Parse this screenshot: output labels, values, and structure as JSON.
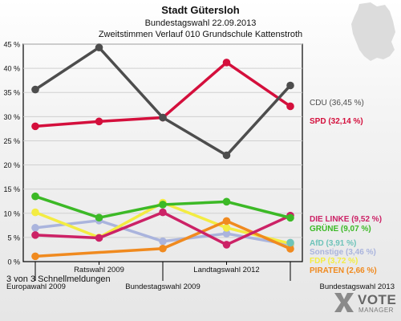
{
  "footer_text": "3 von 3 Schnellmeldungen",
  "brand": {
    "word1": "VOTE",
    "word2": "MANAGER"
  },
  "chart_data": {
    "type": "line",
    "title": "Stadt Gütersloh",
    "subtitle": "Bundestagswahl 22.09.2013",
    "subtitle2": "Zweitstimmen Verlauf 010 Grundschule Kattenstroth",
    "categories": [
      "Europawahl 2009",
      "Ratswahl 2009",
      "Bundestagswahl 2009",
      "Landtagswahl 2012",
      "Bundestagswahl 2013"
    ],
    "ylim": [
      0,
      45
    ],
    "yticks": [
      "0 %",
      "5 %",
      "10 %",
      "15 %",
      "20 %",
      "25 %",
      "30 %",
      "35 %",
      "40 %",
      "45 %"
    ],
    "grid": true,
    "legend_position": "right",
    "series": [
      {
        "name": "Sonstige",
        "label": "Sonstige (3,46 %)",
        "color": "#aab4dd",
        "values": [
          7.0,
          8.5,
          4.2,
          5.8,
          3.46
        ]
      },
      {
        "name": "FDP",
        "label": "FDP (3,72 %)",
        "color": "#f3ec42",
        "values": [
          10.2,
          5.0,
          12.2,
          7.0,
          3.72
        ]
      },
      {
        "name": "PIRATEN",
        "label": "PIRATEN (2,66 %)",
        "color": "#f08a1f",
        "values": [
          1.1,
          null,
          2.7,
          8.4,
          2.66
        ]
      },
      {
        "name": "AfD",
        "label": "AfD (3,91 %)",
        "color": "#6ec3b9",
        "values": [
          null,
          null,
          null,
          null,
          3.91
        ]
      },
      {
        "name": "DIE LINKE",
        "label": "DIE LINKE (9,52 %)",
        "color": "#cc2266",
        "values": [
          5.5,
          4.9,
          10.2,
          3.5,
          9.52
        ]
      },
      {
        "name": "GRÜNE",
        "label": "GRÜNE (9,07 %)",
        "color": "#3cb926",
        "values": [
          13.5,
          9.1,
          11.8,
          12.4,
          9.07
        ]
      },
      {
        "name": "SPD",
        "label": "SPD (32,14 %)",
        "color": "#d40f3c",
        "values": [
          28.0,
          29.0,
          29.8,
          41.2,
          32.14
        ]
      },
      {
        "name": "CDU",
        "label": "CDU (36,45 %)",
        "color": "#4d4d4d",
        "values": [
          35.6,
          44.3,
          29.8,
          22.0,
          36.45
        ]
      }
    ]
  }
}
